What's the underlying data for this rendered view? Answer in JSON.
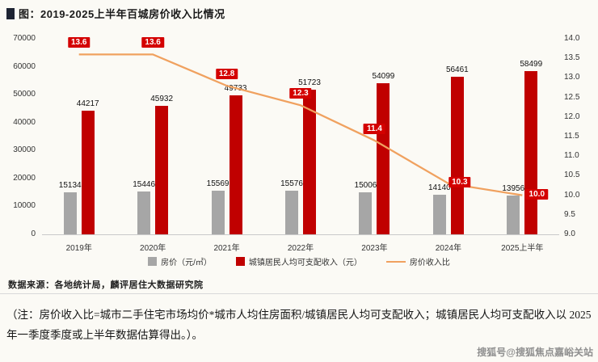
{
  "title": "图：2019-2025上半年百城房价收入比情况",
  "chart_data": {
    "type": "combo",
    "categories": [
      "2019年",
      "2020年",
      "2021年",
      "2022年",
      "2023年",
      "2024年",
      "2025上半年"
    ],
    "series": [
      {
        "name": "房价（元/㎡）",
        "type": "bar",
        "axis": "left",
        "color": "#a6a6a6",
        "values": [
          15134,
          15446,
          15569,
          15576,
          15006,
          14140,
          13956
        ]
      },
      {
        "name": "城镇居民人均可支配收入（元）",
        "type": "bar",
        "axis": "left",
        "color": "#c00000",
        "values": [
          44217,
          45932,
          49733,
          51723,
          54099,
          56461,
          58499
        ]
      },
      {
        "name": "房价收入比",
        "type": "line",
        "axis": "right",
        "color": "#f0a15f",
        "label_bg": "#d40000",
        "values": [
          13.6,
          13.6,
          12.8,
          12.3,
          11.4,
          10.3,
          10.0
        ]
      }
    ],
    "left_axis": {
      "min": 0,
      "max": 70000,
      "step": 10000
    },
    "right_axis": {
      "min": 9.0,
      "max": 14.0,
      "step": 0.5
    },
    "grid": false,
    "legend_position": "bottom"
  },
  "source": "数据来源：各地统计局，麟评居住大数据研究院",
  "note": "（注：房价收入比=城市二手住宅市场均价*城市人均住房面积/城镇居民人均可支配收入；城镇居民人均可支配收入以 2025 年一季度季度或上半年数据估算得出。）。",
  "watermark": "搜狐号@搜狐焦点嘉峪关站"
}
